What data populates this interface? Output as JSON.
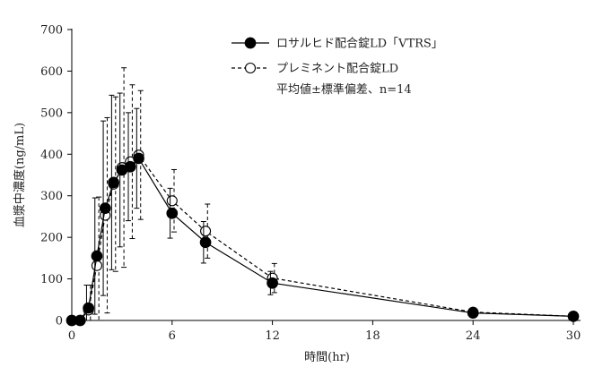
{
  "chart_data": {
    "type": "line",
    "xlabel": "時間(hr)",
    "ylabel": "血漿中濃度(ng/mL)",
    "xlim": [
      0,
      30
    ],
    "ylim": [
      0,
      700
    ],
    "xticks": [
      "0",
      "6",
      "12",
      "18",
      "24",
      "30"
    ],
    "yticks": [
      "0",
      "100",
      "200",
      "300",
      "400",
      "500",
      "600",
      "700"
    ],
    "grid": false,
    "legend_position": "top-right",
    "note": "平均値±標準偏差、n=14",
    "series": [
      {
        "name": "ロサルヒド配合錠LD「VTRS」",
        "marker": "filled-circle",
        "line": "solid",
        "color": "#000000",
        "x": [
          0,
          0.5,
          1,
          1.5,
          2,
          2.5,
          3,
          3.5,
          4,
          6,
          8,
          12,
          24,
          30
        ],
        "y": [
          0,
          0,
          30,
          155,
          270,
          332,
          362,
          370,
          390,
          258,
          188,
          90,
          18,
          10
        ],
        "error": [
          0,
          0,
          55,
          140,
          210,
          210,
          185,
          130,
          120,
          60,
          50,
          28,
          4,
          3
        ]
      },
      {
        "name": "プレミネント配合錠LD",
        "marker": "open-circle",
        "line": "dashed",
        "color": "#000000",
        "x": [
          0,
          0.5,
          1,
          1.5,
          2,
          2.5,
          3,
          3.5,
          4,
          6,
          8,
          12,
          24,
          30
        ],
        "y": [
          0,
          0,
          25,
          132,
          253,
          328,
          368,
          382,
          398,
          288,
          215,
          102,
          20,
          10
        ],
        "error": [
          0,
          0,
          60,
          165,
          235,
          210,
          240,
          185,
          155,
          75,
          65,
          35,
          5,
          3
        ]
      }
    ]
  }
}
